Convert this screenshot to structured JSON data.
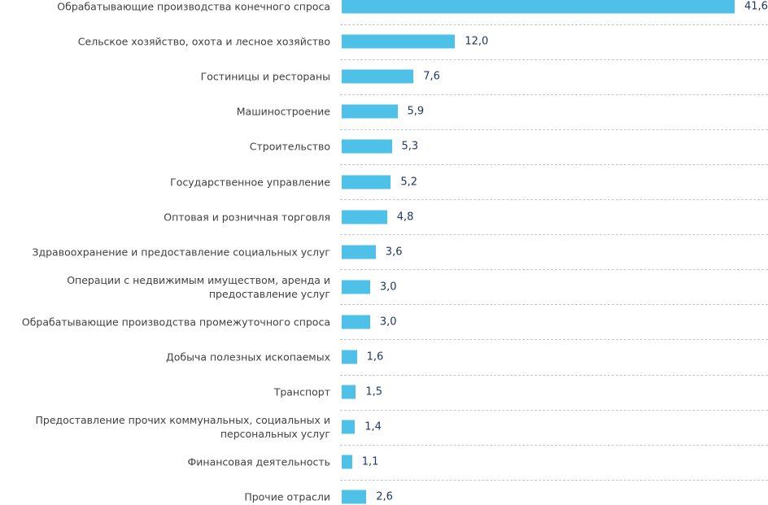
{
  "chart_data": {
    "type": "bar",
    "orientation": "horizontal",
    "title": "",
    "xlabel": "",
    "ylabel": "",
    "bar_color": "#4fc1e9",
    "categories": [
      "Обрабатывающие производства конечного спроса",
      "Сельское хозяйство, охота и лесное хозяйство",
      "Гостиницы и рестораны",
      "Машиностроение",
      "Строительство",
      "Государственное управление",
      "Оптовая и розничная торговля",
      "Здравоохранение и предоставление социальных услуг",
      "Операции с недвижимым имуществом, аренда и предоставление услуг",
      "Обрабатывающие производства промежуточного спроса",
      "Добыча полезных ископаемых",
      "Транспорт",
      "Предоставление прочих коммунальных, социальных и персональных услуг",
      "Финансовая деятельность",
      "Прочие отрасли"
    ],
    "values": [
      41.6,
      12.0,
      7.6,
      5.9,
      5.3,
      5.2,
      4.8,
      3.6,
      3.0,
      3.0,
      1.6,
      1.5,
      1.4,
      1.1,
      2.6
    ],
    "value_labels": [
      "41,6",
      "12,0",
      "7,6",
      "5,9",
      "5,3",
      "5,2",
      "4,8",
      "3,6",
      "3,0",
      "3,0",
      "1,6",
      "1,5",
      "1,4",
      "1,1",
      "2,6"
    ],
    "xlim": [
      0,
      41.6
    ]
  }
}
